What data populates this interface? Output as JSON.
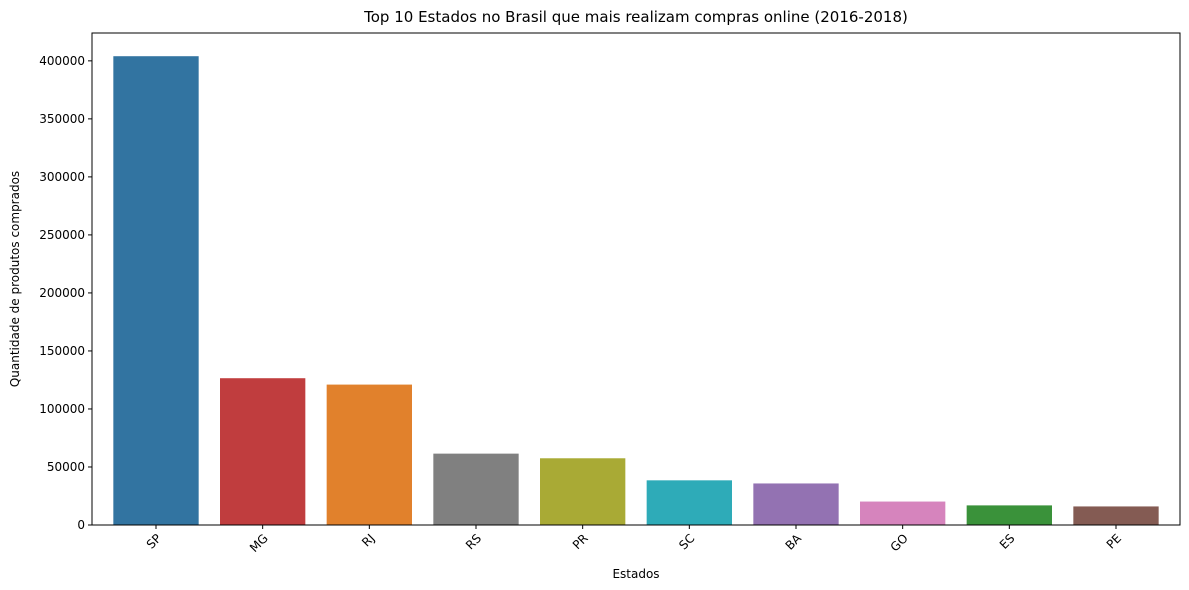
{
  "chart_data": {
    "type": "bar",
    "title": "Top 10 Estados no Brasil que mais realizam compras online (2016-2018)",
    "xlabel": "Estados",
    "ylabel": "Quantidade de produtos comprados",
    "categories": [
      "SP",
      "MG",
      "RJ",
      "RS",
      "PR",
      "SC",
      "BA",
      "GO",
      "ES",
      "PE"
    ],
    "values": [
      404000,
      126500,
      121000,
      61500,
      57500,
      38500,
      35800,
      20200,
      16900,
      16000
    ],
    "colors": [
      "#3274a1",
      "#c03d3e",
      "#e1812c",
      "#808080",
      "#a9aa35",
      "#2eabb8",
      "#9372b2",
      "#d684bd",
      "#3a923a",
      "#845b53"
    ],
    "ylim": [
      0,
      424000
    ],
    "yticks": [
      0,
      50000,
      100000,
      150000,
      200000,
      250000,
      300000,
      350000,
      400000
    ],
    "ytick_labels": [
      "0",
      "50000",
      "100000",
      "150000",
      "200000",
      "250000",
      "300000",
      "350000",
      "400000"
    ],
    "grid": false,
    "legend": "none",
    "xtick_rotation": 45
  }
}
